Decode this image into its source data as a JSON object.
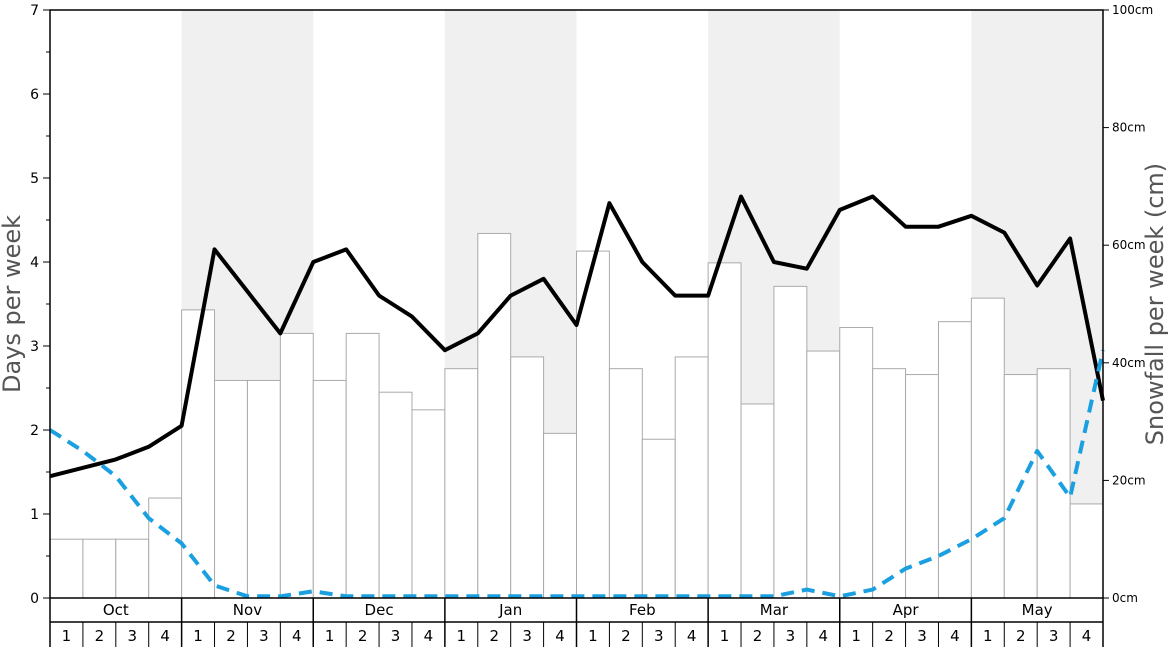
{
  "chart_data": {
    "type": "bar+line",
    "left_axis": {
      "label": "Days per week",
      "min": 0,
      "max": 7,
      "ticks": [
        "0",
        "1",
        "2",
        "3",
        "4",
        "5",
        "6",
        "7"
      ]
    },
    "right_axis": {
      "label": "Snowfall per week (cm)",
      "min": 0,
      "max": 100,
      "ticks": [
        "0cm",
        "20cm",
        "40cm",
        "60cm",
        "80cm",
        "100cm"
      ]
    },
    "months": [
      "Oct",
      "Nov",
      "Dec",
      "Jan",
      "Feb",
      "Mar",
      "Apr",
      "May"
    ],
    "weeks": [
      "1",
      "2",
      "3",
      "4"
    ],
    "shaded_months": [
      "Nov",
      "Jan",
      "Mar",
      "May"
    ],
    "colors": {
      "bar_fill": "#ffffff",
      "bar_stroke": "#aaaaaa",
      "shade": "#f0f0f0",
      "solid_line": "#000000",
      "dashed_line": "#1aa0e0"
    },
    "series": [
      {
        "style": "bars",
        "axis": "right",
        "values": [
          10,
          10,
          10,
          17,
          49,
          37,
          37,
          45,
          37,
          45,
          35,
          32,
          39,
          62,
          41,
          28,
          59,
          39,
          27,
          41,
          57,
          33,
          53,
          42,
          46,
          39,
          38,
          47,
          51,
          38,
          39,
          16
        ]
      },
      {
        "style": "solid-line",
        "axis": "left",
        "values": [
          1.45,
          1.55,
          1.65,
          1.8,
          2.05,
          4.15,
          3.65,
          3.15,
          4.0,
          4.15,
          3.6,
          3.35,
          2.95,
          3.15,
          3.6,
          3.8,
          3.25,
          4.7,
          4.0,
          3.6,
          3.6,
          4.78,
          4.0,
          3.92,
          4.62,
          4.78,
          4.42,
          4.42,
          4.55,
          4.35,
          3.72,
          4.28,
          2.35
        ]
      },
      {
        "style": "dashed-line",
        "axis": "left",
        "values": [
          2.0,
          1.75,
          1.45,
          0.95,
          0.65,
          0.15,
          0.02,
          0.02,
          0.08,
          0.02,
          0.02,
          0.02,
          0.02,
          0.02,
          0.02,
          0.02,
          0.02,
          0.02,
          0.02,
          0.02,
          0.02,
          0.02,
          0.02,
          0.1,
          0.02,
          0.1,
          0.35,
          0.5,
          0.7,
          0.95,
          1.75,
          1.2,
          2.95
        ]
      }
    ]
  }
}
